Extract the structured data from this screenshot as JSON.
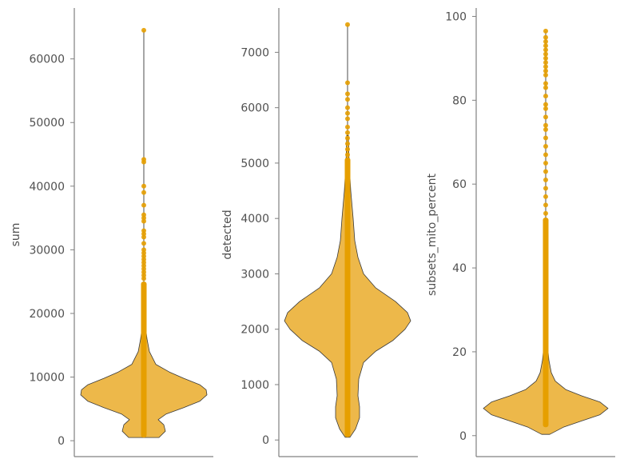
{
  "colors": {
    "violin_fill": "#EDB84A",
    "violin_edge": "#3a3a3a",
    "points": "#E69F00",
    "axis": "#808080",
    "text": "#505050"
  },
  "chart_data": [
    {
      "type": "violin",
      "ylabel": "sum",
      "ylim": [
        -2500,
        68000
      ],
      "yticks": [
        0,
        10000,
        20000,
        30000,
        40000,
        50000,
        60000
      ],
      "ytick_labels": [
        "0",
        "10000",
        "20000",
        "30000",
        "40000",
        "50000",
        "60000"
      ],
      "min": 500,
      "max": 64500,
      "density": [
        [
          500,
          19
        ],
        [
          1500,
          27
        ],
        [
          2500,
          25
        ],
        [
          3300,
          18
        ],
        [
          4200,
          28
        ],
        [
          5200,
          50
        ],
        [
          6200,
          70
        ],
        [
          7200,
          79
        ],
        [
          8000,
          78
        ],
        [
          8800,
          70
        ],
        [
          9800,
          50
        ],
        [
          10800,
          32
        ],
        [
          12000,
          15
        ],
        [
          14000,
          7
        ],
        [
          16000,
          4
        ],
        [
          18000,
          2
        ],
        [
          20000,
          1
        ]
      ],
      "points_cluster": [
        500,
        25000
      ],
      "outliers": [
        25500,
        26000,
        26500,
        27000,
        27500,
        28000,
        28500,
        29000,
        29500,
        30000,
        31000,
        32000,
        32500,
        33000,
        34500,
        35000,
        35500,
        37000,
        39000,
        40000,
        43800,
        44200,
        64500
      ]
    },
    {
      "type": "violin",
      "ylabel": "detected",
      "ylim": [
        -300,
        7800
      ],
      "yticks": [
        0,
        1000,
        2000,
        3000,
        4000,
        5000,
        6000,
        7000
      ],
      "ytick_labels": [
        "0",
        "1000",
        "2000",
        "3000",
        "4000",
        "5000",
        "6000",
        "7000"
      ],
      "min": 50,
      "max": 7500,
      "density": [
        [
          50,
          3
        ],
        [
          200,
          10
        ],
        [
          400,
          15
        ],
        [
          600,
          15
        ],
        [
          800,
          13
        ],
        [
          1100,
          14
        ],
        [
          1400,
          20
        ],
        [
          1600,
          35
        ],
        [
          1800,
          57
        ],
        [
          2000,
          72
        ],
        [
          2150,
          79
        ],
        [
          2300,
          75
        ],
        [
          2500,
          60
        ],
        [
          2750,
          35
        ],
        [
          3000,
          20
        ],
        [
          3300,
          13
        ],
        [
          3600,
          9
        ],
        [
          4000,
          7
        ],
        [
          4500,
          4
        ],
        [
          5000,
          2
        ],
        [
          5500,
          1
        ]
      ],
      "points_cluster": [
        50,
        5100
      ],
      "outliers": [
        5150,
        5250,
        5350,
        5450,
        5550,
        5650,
        5800,
        5900,
        6000,
        6150,
        6250,
        6450,
        7500
      ]
    },
    {
      "type": "violin",
      "ylabel": "subsets_mito_percent",
      "ylim": [
        -5,
        102
      ],
      "yticks": [
        0,
        20,
        40,
        60,
        80,
        100
      ],
      "ytick_labels": [
        "0",
        "20",
        "40",
        "60",
        "80",
        "100"
      ],
      "min": 0.3,
      "max": 96.5,
      "density": [
        [
          0.3,
          5
        ],
        [
          2,
          22
        ],
        [
          3.5,
          45
        ],
        [
          5,
          68
        ],
        [
          6.5,
          78
        ],
        [
          8,
          68
        ],
        [
          9.5,
          45
        ],
        [
          11,
          25
        ],
        [
          13,
          12
        ],
        [
          15,
          7
        ],
        [
          18,
          4
        ],
        [
          22,
          2
        ],
        [
          28,
          1
        ]
      ],
      "points_cluster": [
        2,
        52
      ],
      "outliers": [
        53,
        55,
        57,
        59,
        61,
        63,
        65,
        67,
        69,
        71,
        73,
        74,
        76,
        78,
        79,
        81,
        83,
        84,
        86,
        87,
        88,
        89,
        90,
        91,
        92,
        93,
        94,
        95,
        96.5
      ]
    }
  ]
}
